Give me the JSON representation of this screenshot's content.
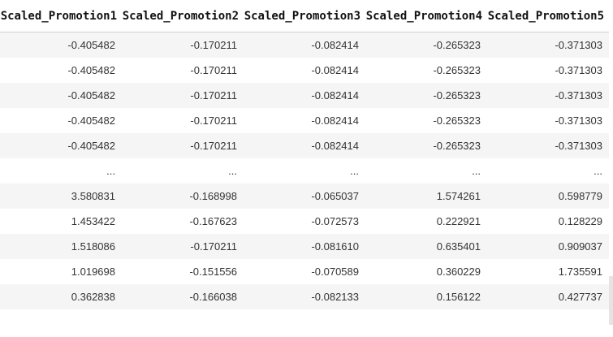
{
  "table": {
    "columns": [
      "Scaled_Promotion1",
      "Scaled_Promotion2",
      "Scaled_Promotion3",
      "Scaled_Promotion4",
      "Scaled_Promotion5"
    ],
    "rows": [
      [
        "-0.405482",
        "-0.170211",
        "-0.082414",
        "-0.265323",
        "-0.371303"
      ],
      [
        "-0.405482",
        "-0.170211",
        "-0.082414",
        "-0.265323",
        "-0.371303"
      ],
      [
        "-0.405482",
        "-0.170211",
        "-0.082414",
        "-0.265323",
        "-0.371303"
      ],
      [
        "-0.405482",
        "-0.170211",
        "-0.082414",
        "-0.265323",
        "-0.371303"
      ],
      [
        "-0.405482",
        "-0.170211",
        "-0.082414",
        "-0.265323",
        "-0.371303"
      ],
      [
        "...",
        "...",
        "...",
        "...",
        "..."
      ],
      [
        "3.580831",
        "-0.168998",
        "-0.065037",
        "1.574261",
        "0.598779"
      ],
      [
        "1.453422",
        "-0.167623",
        "-0.072573",
        "0.222921",
        "0.128229"
      ],
      [
        "1.518086",
        "-0.170211",
        "-0.081610",
        "0.635401",
        "0.909037"
      ],
      [
        "1.019698",
        "-0.151556",
        "-0.070589",
        "0.360229",
        "1.735591"
      ],
      [
        "0.362838",
        "-0.166038",
        "-0.082133",
        "0.156122",
        "0.427737"
      ]
    ]
  }
}
